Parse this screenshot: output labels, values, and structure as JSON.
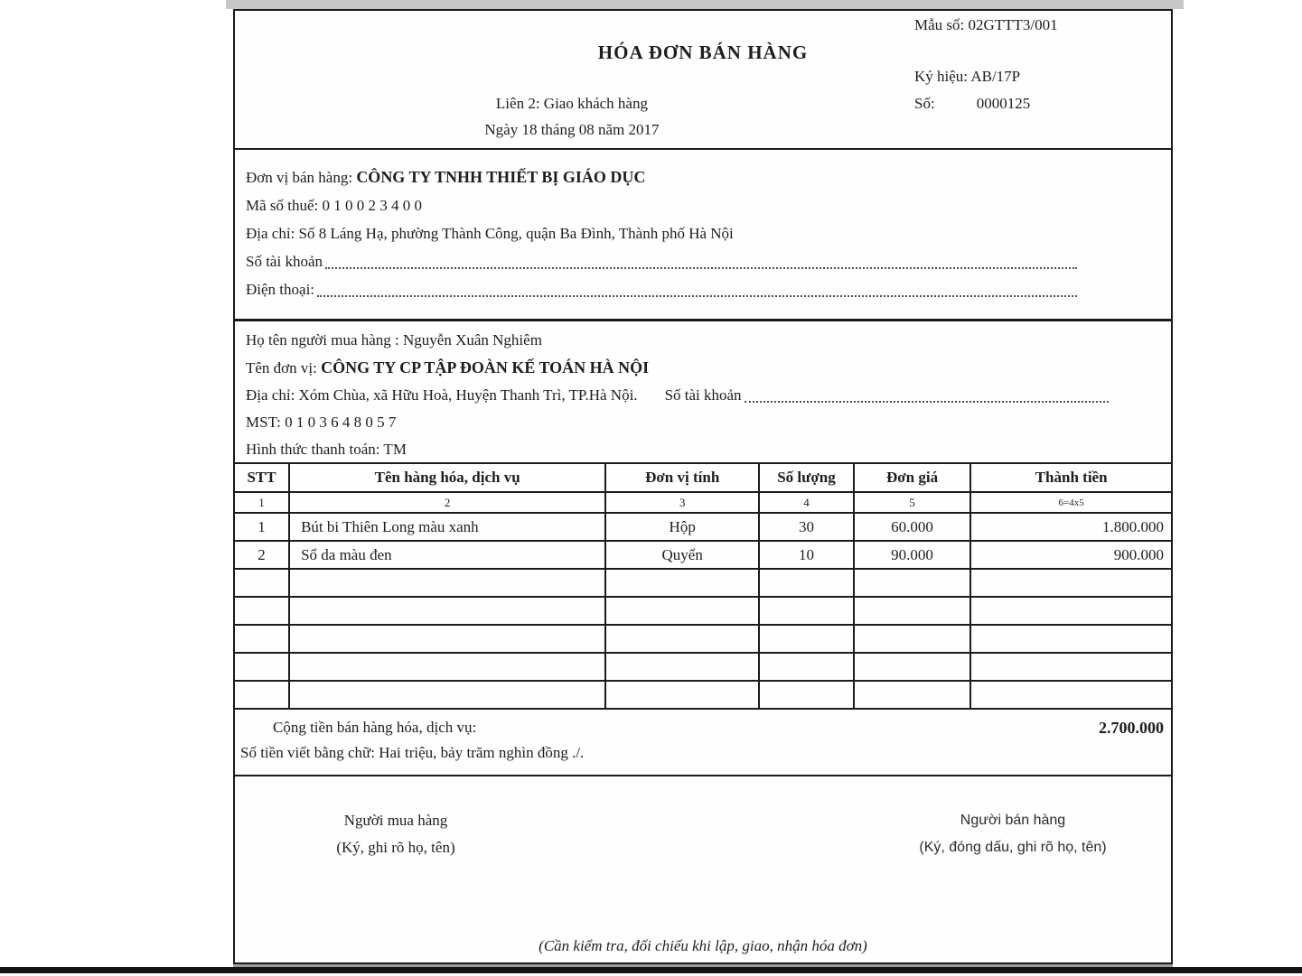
{
  "header": {
    "form_no": "Mẫu số: 02GTTT3/001",
    "title": "HÓA ĐƠN BÁN HÀNG",
    "serial": "Ký hiệu: AB/17P",
    "copy_line": "Liên 2: Giao khách hàng",
    "number_label": "Số:",
    "number_value": "0000125",
    "date_line": "Ngày 18 tháng 08 năm 2017"
  },
  "seller": {
    "unit_label": "Đơn vị bán hàng:",
    "unit_name": "CÔNG TY TNHH THIẾT BỊ GIÁO DỤC",
    "tax_line": "Mã số thuế: 0 1 0 0 2 3 4 0 0",
    "address_line": "Địa chỉ: Số 8 Láng Hạ, phường Thành Công, quận Ba Đình, Thành phố Hà Nội",
    "account_label": "Số tài khoản",
    "phone_label": "Điện thoại:"
  },
  "buyer": {
    "name_line": "Họ tên người mua hàng : Nguyễn Xuân Nghiêm",
    "unit_label": "Tên đơn vị:",
    "unit_name": "CÔNG TY CP TẬP ĐOÀN KẾ TOÁN HÀ NỘI",
    "address_line": "Địa chỉ: Xóm Chùa, xã Hữu Hoà, Huyện Thanh Trì, TP.Hà Nội.",
    "account_label": "Số tài khoản",
    "tax_line": "MST: 0 1 0 3 6 4 8 0 5 7",
    "payment_line": "Hình thức thanh toán: TM"
  },
  "table": {
    "headers": [
      "STT",
      "Tên hàng hóa, dịch vụ",
      "Đơn vị tính",
      "Số lượng",
      "Đơn giá",
      "Thành tiền"
    ],
    "col_numbers": [
      "1",
      "2",
      "3",
      "4",
      "5",
      "6=4x5"
    ],
    "rows": [
      [
        "1",
        "Bút bi Thiên Long màu xanh",
        "Hộp",
        "30",
        "60.000",
        "1.800.000"
      ],
      [
        "2",
        "Sổ da màu đen",
        "Quyển",
        "10",
        "90.000",
        "900.000"
      ]
    ],
    "empty_row_count": 5
  },
  "totals": {
    "total_label": "Cộng tiền bán hàng hóa, dịch vụ:",
    "total_value": "2.700.000",
    "amount_in_words": "Số tiền viết bằng chữ: Hai triệu, bảy trăm nghìn đồng ./."
  },
  "signatures": {
    "buyer_title": "Người mua hàng",
    "buyer_note": "(Ký, ghi rõ họ, tên)",
    "seller_title": "Người bán hàng",
    "seller_note": "(Ký, đóng dấu, ghi rõ họ, tên)"
  },
  "footer_note": "(Cần kiểm tra, đối chiếu khi lập, giao, nhận hóa đơn)"
}
